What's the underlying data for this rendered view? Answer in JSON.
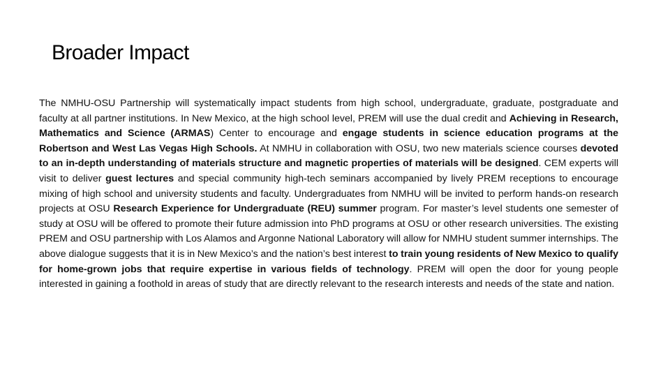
{
  "slide": {
    "title": "Broader Impact",
    "paragraph": [
      {
        "text": "The NMHU-OSU Partnership will systematically impact students from high school, undergraduate, graduate, postgraduate and faculty at all partner institutions. In New Mexico, at the high school level, PREM will use the dual credit and ",
        "bold": false
      },
      {
        "text": "Achieving in Research, Mathematics and Science (ARMAS",
        "bold": true
      },
      {
        "text": ") Center to encourage and ",
        "bold": false
      },
      {
        "text": "engage students in science education programs at the Robertson and West Las Vegas High Schools.",
        "bold": true
      },
      {
        "text": " At NMHU in collaboration with OSU, two new materials science courses ",
        "bold": false
      },
      {
        "text": "devoted to an in-depth understanding of materials structure and magnetic properties of materials will be designed",
        "bold": true
      },
      {
        "text": ". CEM experts will visit to deliver ",
        "bold": false
      },
      {
        "text": "guest lectures",
        "bold": true
      },
      {
        "text": " and special community high-tech seminars accompanied by lively PREM receptions to encourage mixing of high school and university students and faculty. Undergraduates from NMHU will be invited to perform hands-on research projects at OSU ",
        "bold": false
      },
      {
        "text": "Research Experience for Undergraduate (REU) summer",
        "bold": true
      },
      {
        "text": " program. For master’s level students one semester of study at OSU will be offered to promote their future admission into PhD programs at OSU or other research universities. The existing PREM and OSU partnership with Los Alamos and Argonne National Laboratory will allow for NMHU student summer internships. The above dialogue suggests that it is in New Mexico’s and the nation’s best interest ",
        "bold": false
      },
      {
        "text": "to train young residents of New Mexico to qualify for home-grown jobs that require expertise in various fields of technology",
        "bold": true
      },
      {
        "text": ". PREM will open the door for young people interested in gaining a foothold in areas of study that are directly relevant to the research interests and needs of the state and nation.",
        "bold": false
      }
    ]
  }
}
